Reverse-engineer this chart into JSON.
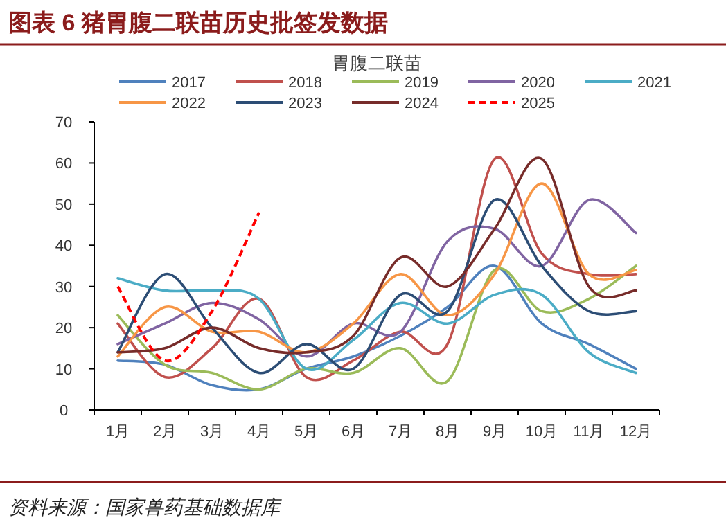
{
  "chart_data": {
    "type": "line",
    "title": "图表 6   猪胃腹二联苗历史批签发数据",
    "subtitle": "胃腹二联苗",
    "annotations": [
      "资料来源：国家兽药基础数据库"
    ],
    "categories": [
      "1月",
      "2月",
      "3月",
      "4月",
      "5月",
      "6月",
      "7月",
      "8月",
      "9月",
      "10月",
      "11月",
      "12月"
    ],
    "ylim": [
      0,
      70
    ],
    "yticks": [
      0,
      10,
      20,
      30,
      40,
      50,
      60,
      70
    ],
    "grid": false,
    "legend": "top",
    "marker": "none",
    "series": [
      {
        "name": "2017",
        "color": "#4f81bd",
        "values": [
          12,
          11,
          6,
          5,
          10,
          13,
          18,
          25,
          35,
          21,
          16,
          10
        ]
      },
      {
        "name": "2018",
        "color": "#c0504d",
        "values": [
          21,
          8,
          15,
          27,
          8,
          12,
          19,
          16,
          61,
          38,
          33,
          33
        ]
      },
      {
        "name": "2019",
        "color": "#9bbb59",
        "values": [
          23,
          11,
          9,
          5,
          10,
          9,
          15,
          7,
          34,
          24,
          27,
          35
        ]
      },
      {
        "name": "2020",
        "color": "#8064a2",
        "values": [
          16,
          21,
          26,
          22,
          13,
          21,
          19,
          41,
          44,
          35,
          51,
          43
        ]
      },
      {
        "name": "2021",
        "color": "#4bacc6",
        "values": [
          32,
          29,
          29,
          27,
          10,
          17,
          26,
          21,
          28,
          28,
          14,
          9
        ]
      },
      {
        "name": "2022",
        "color": "#f79646",
        "values": [
          13,
          25,
          19,
          19,
          14,
          21,
          33,
          23,
          33,
          55,
          33,
          34
        ]
      },
      {
        "name": "2023",
        "color": "#2c4d75",
        "values": [
          14,
          33,
          20,
          9,
          16,
          10,
          28,
          24,
          51,
          35,
          24,
          24
        ]
      },
      {
        "name": "2024",
        "color": "#772c2a",
        "values": [
          14,
          15,
          20,
          15,
          14,
          18,
          37,
          30,
          44,
          61,
          30,
          29
        ]
      },
      {
        "name": "2025",
        "color": "#ff0000",
        "line_style": "dashed",
        "values": [
          30,
          12,
          24,
          48,
          null,
          null,
          null,
          null,
          null,
          null,
          null,
          null
        ]
      }
    ]
  }
}
